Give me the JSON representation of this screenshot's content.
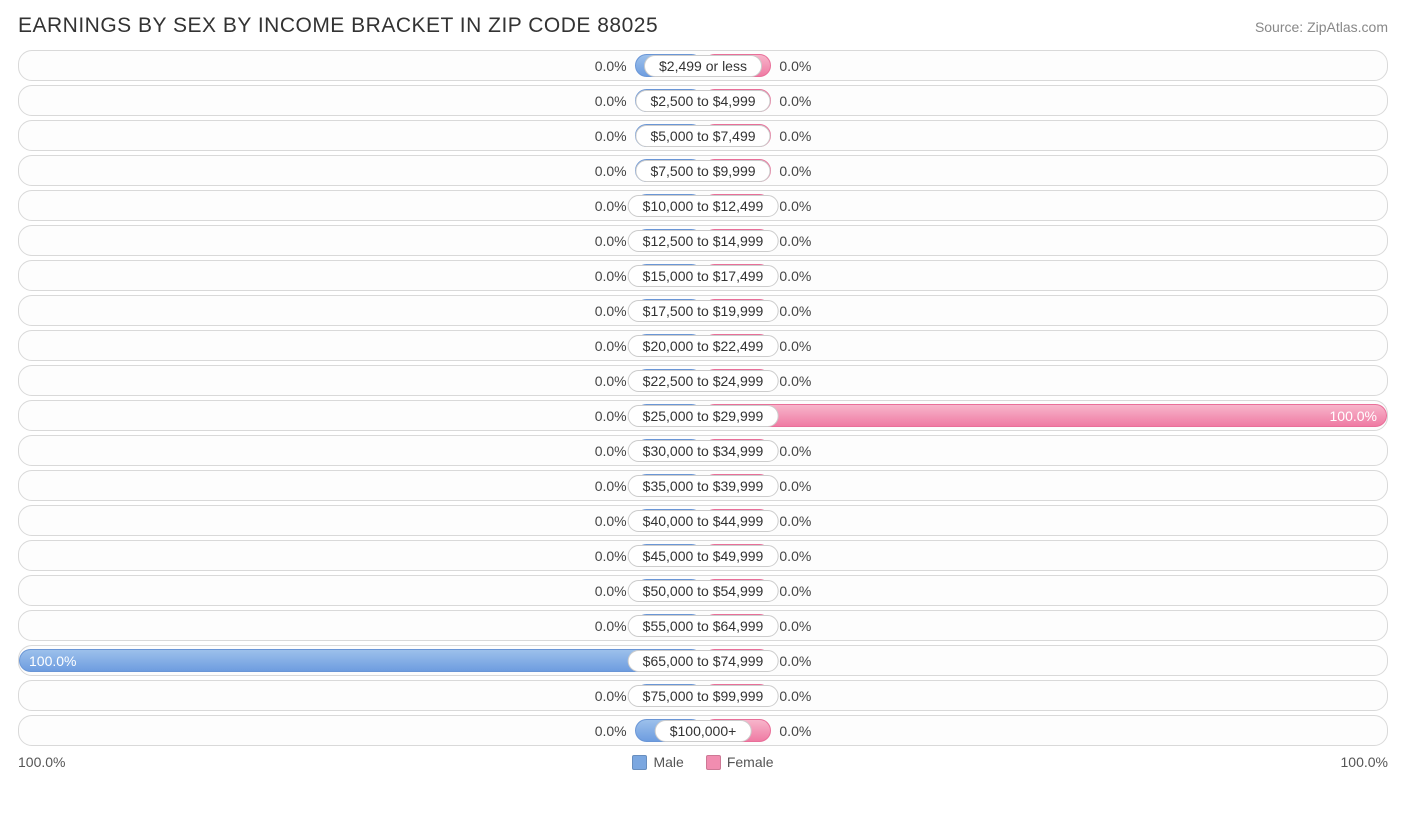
{
  "title": "EARNINGS BY SEX BY INCOME BRACKET IN ZIP CODE 88025",
  "source": "Source: ZipAtlas.com",
  "chart": {
    "type": "diverging-bar",
    "male_color": "#7ba7e0",
    "female_color": "#f18db0",
    "track_border_color": "#d9d9d9",
    "track_bg": "#fdfdfd",
    "label_pill_bg": "#ffffff",
    "label_pill_border": "#cccccc",
    "min_bar_pct": 10,
    "axis_left_label": "100.0%",
    "axis_right_label": "100.0%",
    "rows": [
      {
        "category": "$2,499 or less",
        "male": 0.0,
        "female": 0.0
      },
      {
        "category": "$2,500 to $4,999",
        "male": 0.0,
        "female": 0.0
      },
      {
        "category": "$5,000 to $7,499",
        "male": 0.0,
        "female": 0.0
      },
      {
        "category": "$7,500 to $9,999",
        "male": 0.0,
        "female": 0.0
      },
      {
        "category": "$10,000 to $12,499",
        "male": 0.0,
        "female": 0.0
      },
      {
        "category": "$12,500 to $14,999",
        "male": 0.0,
        "female": 0.0
      },
      {
        "category": "$15,000 to $17,499",
        "male": 0.0,
        "female": 0.0
      },
      {
        "category": "$17,500 to $19,999",
        "male": 0.0,
        "female": 0.0
      },
      {
        "category": "$20,000 to $22,499",
        "male": 0.0,
        "female": 0.0
      },
      {
        "category": "$22,500 to $24,999",
        "male": 0.0,
        "female": 0.0
      },
      {
        "category": "$25,000 to $29,999",
        "male": 0.0,
        "female": 100.0
      },
      {
        "category": "$30,000 to $34,999",
        "male": 0.0,
        "female": 0.0
      },
      {
        "category": "$35,000 to $39,999",
        "male": 0.0,
        "female": 0.0
      },
      {
        "category": "$40,000 to $44,999",
        "male": 0.0,
        "female": 0.0
      },
      {
        "category": "$45,000 to $49,999",
        "male": 0.0,
        "female": 0.0
      },
      {
        "category": "$50,000 to $54,999",
        "male": 0.0,
        "female": 0.0
      },
      {
        "category": "$55,000 to $64,999",
        "male": 0.0,
        "female": 0.0
      },
      {
        "category": "$65,000 to $74,999",
        "male": 100.0,
        "female": 0.0
      },
      {
        "category": "$75,000 to $99,999",
        "male": 0.0,
        "female": 0.0
      },
      {
        "category": "$100,000+",
        "male": 0.0,
        "female": 0.0
      }
    ]
  },
  "legend": {
    "male": "Male",
    "female": "Female"
  }
}
